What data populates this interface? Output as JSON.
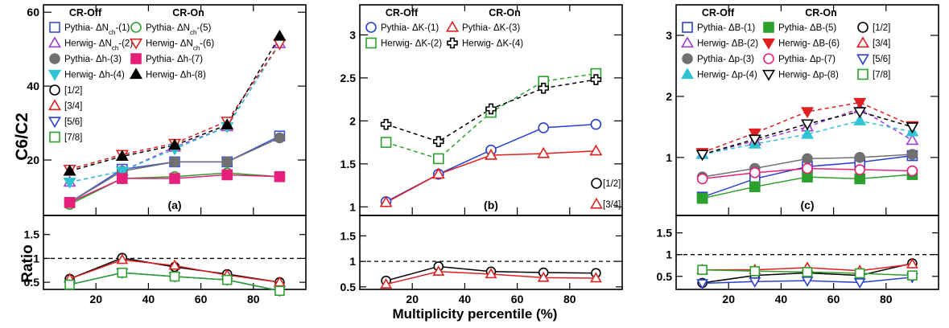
{
  "ylabel_top": "C6/C2",
  "ylabel_bottom": "Ratio",
  "xlabel": "Multiplicity percentile (%)",
  "legend_headers": {
    "off": "CR-Off",
    "on": "CR-On"
  },
  "chart_data": [
    {
      "type": "line",
      "panel_label": "(a)",
      "xlim": [
        0,
        100
      ],
      "ylim": [
        5,
        62
      ],
      "yticks": [
        20,
        40,
        60
      ],
      "ratio_ylim": [
        0.35,
        1.9
      ],
      "ratio_yticks": [
        0.5,
        1,
        1.5
      ],
      "xticks": [
        20,
        40,
        60,
        80
      ],
      "x": [
        10,
        30,
        50,
        70,
        90
      ],
      "series": [
        {
          "name": "Pythia- ΔNch-(1)",
          "marker": "open-square",
          "color": "#3a4fd8",
          "line": "solid",
          "values": [
            8.5,
            17.5,
            19.5,
            19.5,
            26.5
          ]
        },
        {
          "name": "Herwig- ΔNch-(2)",
          "marker": "open-triangle-up",
          "color": "#9b3fd0",
          "line": "dashed",
          "values": [
            14.0,
            17.0,
            23.5,
            29.0,
            51.5
          ]
        },
        {
          "name": "Pythia- Δh-(3)",
          "marker": "filled-circle",
          "color": "#707070",
          "line": "solid",
          "values": [
            8.5,
            17.0,
            19.5,
            19.5,
            26.0
          ]
        },
        {
          "name": "Herwig- Δh-(4)",
          "marker": "filled-triangle-down",
          "color": "#2ec4d4",
          "line": "dashed",
          "values": [
            14.0,
            17.0,
            23.0,
            29.0,
            51.5
          ]
        },
        {
          "name": "Pythia- ΔNch-(5)",
          "marker": "open-circle",
          "color": "#2ca02c",
          "line": "solid",
          "values": [
            8.0,
            15.0,
            15.5,
            16.5,
            15.5
          ]
        },
        {
          "name": "Herwig- ΔNch-(6)",
          "marker": "open-triangle-down",
          "color": "#e02020",
          "line": "dashed",
          "values": [
            17.5,
            21.5,
            24.5,
            30.5,
            51.5
          ]
        },
        {
          "name": "Pythia- Δh-(7)",
          "marker": "filled-square",
          "color": "#e6207a",
          "line": "solid",
          "values": [
            8.5,
            15.0,
            15.0,
            16.0,
            15.5
          ]
        },
        {
          "name": "Herwig- Δh-(8)",
          "marker": "filled-triangle-up",
          "color": "#000000",
          "line": "dashed",
          "values": [
            17.0,
            21.0,
            24.0,
            29.5,
            53.5
          ]
        }
      ],
      "ratio_series": [
        {
          "name": "[1/2]",
          "marker": "open-circle",
          "color": "#000000",
          "values": [
            0.57,
            1.01,
            0.82,
            0.67,
            0.5
          ]
        },
        {
          "name": "[3/4]",
          "marker": "open-triangle-up",
          "color": "#e02020",
          "values": [
            0.57,
            0.97,
            0.85,
            0.65,
            0.5
          ]
        },
        {
          "name": "[5/6]",
          "marker": "open-triangle-down",
          "color": "#2a3fcf",
          "values": [
            0.45,
            0.7,
            0.62,
            0.55,
            0.32
          ]
        },
        {
          "name": "[7/8]",
          "marker": "open-square",
          "color": "#2ca02c",
          "values": [
            0.45,
            0.7,
            0.62,
            0.55,
            0.32
          ]
        }
      ],
      "legend_rows_left": [
        "Pythia- ΔNch-(1)",
        "Herwig- ΔNch-(2)",
        "Pythia- Δh-(3)",
        "Herwig- Δh-(4)",
        "[1/2]",
        "[3/4]",
        "[5/6]",
        "[7/8]"
      ],
      "legend_rows_right": [
        "Pythia- ΔNch-(5)",
        "Herwig- ΔNch-(6)",
        "Pythia- Δh-(7)",
        "Herwig- Δh-(8)"
      ]
    },
    {
      "type": "line",
      "panel_label": "(b)",
      "xlim": [
        0,
        100
      ],
      "ylim": [
        0.9,
        3.35
      ],
      "yticks": [
        1,
        1.5,
        2,
        2.5,
        3
      ],
      "ratio_ylim": [
        0.45,
        1.9
      ],
      "ratio_yticks": [
        0.5,
        1,
        1.5
      ],
      "xticks": [
        20,
        40,
        60,
        80
      ],
      "x": [
        10,
        30,
        50,
        70,
        90
      ],
      "series": [
        {
          "name": "Pythia- ΔK-(1)",
          "marker": "open-circle",
          "color": "#2a3fcf",
          "line": "solid",
          "values": [
            1.06,
            1.38,
            1.66,
            1.92,
            1.96
          ]
        },
        {
          "name": "Herwig- ΔK-(2)",
          "marker": "open-square",
          "color": "#2ca02c",
          "line": "dashed",
          "values": [
            1.75,
            1.56,
            2.1,
            2.46,
            2.55
          ]
        },
        {
          "name": "Pythia- ΔK-(3)",
          "marker": "open-triangle-up",
          "color": "#e02020",
          "line": "solid",
          "values": [
            1.05,
            1.38,
            1.6,
            1.62,
            1.65
          ]
        },
        {
          "name": "Herwig- ΔK-(4)",
          "marker": "open-cross",
          "color": "#000000",
          "line": "dashed",
          "values": [
            1.96,
            1.76,
            2.14,
            2.38,
            2.48
          ]
        }
      ],
      "ratio_series": [
        {
          "name": "[1/2]",
          "marker": "open-circle",
          "color": "#000000",
          "values": [
            0.62,
            0.9,
            0.8,
            0.78,
            0.77
          ]
        },
        {
          "name": "[3/4]",
          "marker": "open-triangle-up",
          "color": "#e02020",
          "values": [
            0.55,
            0.8,
            0.75,
            0.68,
            0.67
          ]
        }
      ],
      "legend_rows_left": [
        "Pythia- ΔK-(1)",
        "Herwig- ΔK-(2)"
      ],
      "legend_rows_right": [
        "Pythia- ΔK-(3)",
        "Herwig- ΔK-(4)"
      ]
    },
    {
      "type": "line",
      "panel_label": "(c)",
      "xlim": [
        0,
        100
      ],
      "ylim": [
        0.05,
        3.5
      ],
      "yticks": [
        1,
        2,
        3
      ],
      "ratio_ylim": [
        0.2,
        1.9
      ],
      "ratio_yticks": [
        0.5,
        1,
        1.5
      ],
      "xticks": [
        20,
        40,
        60,
        80
      ],
      "x": [
        10,
        30,
        50,
        70,
        90
      ],
      "series": [
        {
          "name": "Pythia- ΔB-(1)",
          "marker": "open-square",
          "color": "#2a3fcf",
          "line": "solid",
          "values": [
            0.35,
            0.65,
            0.85,
            0.92,
            1.03
          ]
        },
        {
          "name": "Herwig- ΔB-(2)",
          "marker": "open-triangle-up",
          "color": "#9b3fd0",
          "line": "dashed",
          "values": [
            1.05,
            1.27,
            1.5,
            1.8,
            1.28
          ]
        },
        {
          "name": "Pythia- Δp-(3)",
          "marker": "filled-circle",
          "color": "#707070",
          "line": "solid",
          "values": [
            0.68,
            0.82,
            0.98,
            1.0,
            1.05
          ]
        },
        {
          "name": "Herwig- Δp-(4)",
          "marker": "filled-triangle-up",
          "color": "#2ec4d4",
          "line": "dashed",
          "values": [
            1.05,
            1.22,
            1.38,
            1.6,
            1.42
          ]
        },
        {
          "name": "Pythia- ΔB-(5)",
          "marker": "filled-square",
          "color": "#2ca02c",
          "line": "solid",
          "values": [
            0.33,
            0.52,
            0.68,
            0.65,
            0.72
          ]
        },
        {
          "name": "Herwig- ΔB-(6)",
          "marker": "filled-triangle-down",
          "color": "#e02020",
          "line": "dashed",
          "values": [
            1.08,
            1.4,
            1.75,
            1.9,
            1.52
          ]
        },
        {
          "name": "Pythia- Δp-(7)",
          "marker": "open-circle",
          "color": "#e6207a",
          "line": "solid",
          "values": [
            0.65,
            0.75,
            0.82,
            0.8,
            0.78
          ]
        },
        {
          "name": "Herwig- Δp-(8)",
          "marker": "open-triangle-down",
          "color": "#000000",
          "line": "dashed",
          "values": [
            1.05,
            1.3,
            1.55,
            1.75,
            1.5
          ]
        }
      ],
      "ratio_series": [
        {
          "name": "[1/2]",
          "marker": "open-circle",
          "color": "#000000",
          "values": [
            0.35,
            0.52,
            0.58,
            0.52,
            0.8
          ]
        },
        {
          "name": "[3/4]",
          "marker": "open-triangle-up",
          "color": "#e02020",
          "values": [
            0.65,
            0.65,
            0.7,
            0.63,
            0.78
          ]
        },
        {
          "name": "[5/6]",
          "marker": "open-triangle-down",
          "color": "#2a3fcf",
          "values": [
            0.34,
            0.38,
            0.4,
            0.36,
            0.48
          ]
        },
        {
          "name": "[7/8]",
          "marker": "open-square",
          "color": "#2ca02c",
          "values": [
            0.65,
            0.62,
            0.6,
            0.57,
            0.52
          ]
        }
      ],
      "legend_rows_left": [
        "Pythia- ΔB-(1)",
        "Herwig- ΔB-(2)",
        "Pythia- Δp-(3)",
        "Herwig- Δp-(4)"
      ],
      "legend_rows_right": [
        "Pythia- ΔB-(5)",
        "Herwig- ΔB-(6)",
        "Pythia- Δp-(7)",
        "Herwig- Δp-(8)"
      ],
      "legend_rows_ratio": [
        "[1/2]",
        "[3/4]",
        "[5/6]",
        "[7/8]"
      ]
    }
  ]
}
